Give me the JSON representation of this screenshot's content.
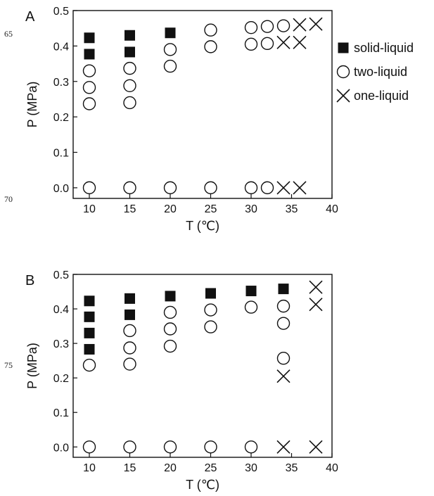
{
  "margin_line_numbers": [
    "65",
    "70",
    "75"
  ],
  "legend": {
    "entries": [
      {
        "marker": "filled-square",
        "label": "solid-liquid"
      },
      {
        "marker": "open-circle",
        "label": "two-liquid"
      },
      {
        "marker": "cross",
        "label": "one-liquid"
      }
    ]
  },
  "chart_data": [
    {
      "panel_label": "A",
      "type": "scatter",
      "xlabel": "T (℃)",
      "ylabel": "P (MPa)",
      "xlim": [
        8,
        40
      ],
      "ylim": [
        -0.03,
        0.5
      ],
      "xticks": [
        10,
        15,
        20,
        25,
        30,
        35,
        40
      ],
      "yticks": [
        0.0,
        0.1,
        0.2,
        0.3,
        0.4,
        0.5
      ],
      "ytick_labels": [
        "0.0",
        "0.1",
        "0.2",
        "0.3",
        "0.4",
        "0.5"
      ],
      "series": [
        {
          "name": "solid-liquid",
          "marker": "filled-square",
          "points": [
            [
              10,
              0.423
            ],
            [
              10,
              0.377
            ],
            [
              15,
              0.43
            ],
            [
              15,
              0.383
            ],
            [
              20,
              0.437
            ]
          ]
        },
        {
          "name": "two-liquid",
          "marker": "open-circle",
          "points": [
            [
              10,
              0.33
            ],
            [
              10,
              0.283
            ],
            [
              10,
              0.237
            ],
            [
              10,
              0.0
            ],
            [
              15,
              0.337
            ],
            [
              15,
              0.288
            ],
            [
              15,
              0.24
            ],
            [
              15,
              0.0
            ],
            [
              20,
              0.39
            ],
            [
              20,
              0.343
            ],
            [
              20,
              0.0
            ],
            [
              25,
              0.445
            ],
            [
              25,
              0.398
            ],
            [
              25,
              0.0
            ],
            [
              30,
              0.452
            ],
            [
              30,
              0.405
            ],
            [
              30,
              0.0
            ],
            [
              32,
              0.455
            ],
            [
              32,
              0.407
            ],
            [
              32,
              0.0
            ],
            [
              34,
              0.457
            ]
          ]
        },
        {
          "name": "one-liquid",
          "marker": "cross",
          "points": [
            [
              34,
              0.41
            ],
            [
              34,
              0.0
            ],
            [
              36,
              0.46
            ],
            [
              36,
              0.41
            ],
            [
              36,
              0.0
            ],
            [
              38,
              0.462
            ]
          ]
        }
      ]
    },
    {
      "panel_label": "B",
      "type": "scatter",
      "xlabel": "T (℃)",
      "ylabel": "P (MPa)",
      "xlim": [
        8,
        40
      ],
      "ylim": [
        -0.03,
        0.5
      ],
      "xticks": [
        10,
        15,
        20,
        25,
        30,
        35,
        40
      ],
      "yticks": [
        0.0,
        0.1,
        0.2,
        0.3,
        0.4,
        0.5
      ],
      "ytick_labels": [
        "0.0",
        "0.1",
        "0.2",
        "0.3",
        "0.4",
        "0.5"
      ],
      "series": [
        {
          "name": "solid-liquid",
          "marker": "filled-square",
          "points": [
            [
              10,
              0.423
            ],
            [
              10,
              0.377
            ],
            [
              10,
              0.33
            ],
            [
              10,
              0.283
            ],
            [
              15,
              0.43
            ],
            [
              15,
              0.383
            ],
            [
              20,
              0.437
            ],
            [
              25,
              0.445
            ],
            [
              30,
              0.452
            ],
            [
              34,
              0.458
            ]
          ]
        },
        {
          "name": "two-liquid",
          "marker": "open-circle",
          "points": [
            [
              10,
              0.237
            ],
            [
              10,
              0.0
            ],
            [
              15,
              0.337
            ],
            [
              15,
              0.287
            ],
            [
              15,
              0.24
            ],
            [
              15,
              0.0
            ],
            [
              20,
              0.39
            ],
            [
              20,
              0.342
            ],
            [
              20,
              0.292
            ],
            [
              20,
              0.0
            ],
            [
              25,
              0.397
            ],
            [
              25,
              0.348
            ],
            [
              25,
              0.0
            ],
            [
              30,
              0.405
            ],
            [
              30,
              0.0
            ],
            [
              34,
              0.408
            ],
            [
              34,
              0.358
            ],
            [
              34,
              0.257
            ]
          ]
        },
        {
          "name": "one-liquid",
          "marker": "cross",
          "points": [
            [
              34,
              0.205
            ],
            [
              34,
              0.0
            ],
            [
              38,
              0.463
            ],
            [
              38,
              0.413
            ],
            [
              38,
              0.0
            ]
          ]
        }
      ]
    }
  ]
}
